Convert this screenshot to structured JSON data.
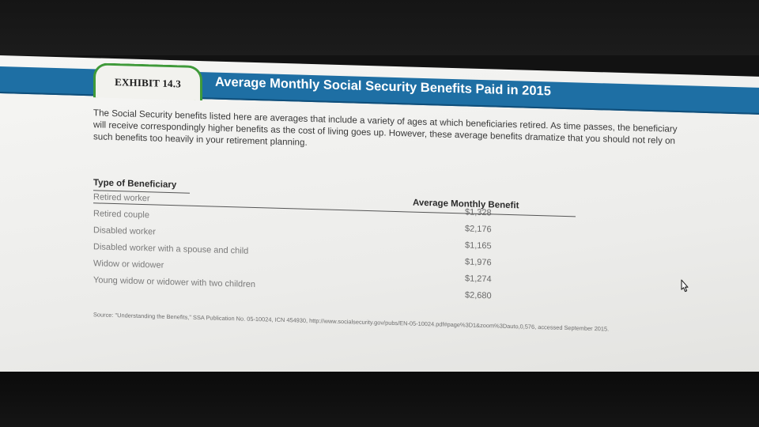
{
  "exhibit": {
    "label": "EXHIBIT 14.3",
    "title": "Average Monthly Social Security Benefits Paid in 2015"
  },
  "intro": "The Social Security benefits listed here are averages that include a variety of ages at which beneficiaries retired. As time passes, the beneficiary will receive correspondingly higher benefits as the cost of living goes up. However, these average benefits dramatize that you should not rely on such benefits too heavily in your retirement planning.",
  "table": {
    "header_type": "Type of Beneficiary",
    "header_benefit": "Average Monthly Benefit",
    "rows": [
      {
        "type": "Retired worker",
        "benefit": "$1,328"
      },
      {
        "type": "Retired couple",
        "benefit": "$2,176"
      },
      {
        "type": "Disabled worker",
        "benefit": "$1,165"
      },
      {
        "type": "Disabled worker with a spouse and child",
        "benefit": "$1,976"
      },
      {
        "type": "Widow or widower",
        "benefit": "$1,274"
      },
      {
        "type": "Young widow or widower with two children",
        "benefit": "$2,680"
      }
    ]
  },
  "source": "Source: \"Understanding the Benefits,\" SSA Publication No. 05-10024, ICN 454930, http://www.socialsecurity.gov/pubs/EN-05-10024.pdf#page%3D1&zoom%3Dauto,0,576, accessed September 2015.",
  "colors": {
    "header_bar": "#1e6fa4",
    "tab_border": "#3f9a3a"
  },
  "icons": {
    "cursor": "pointer-cursor-icon"
  }
}
